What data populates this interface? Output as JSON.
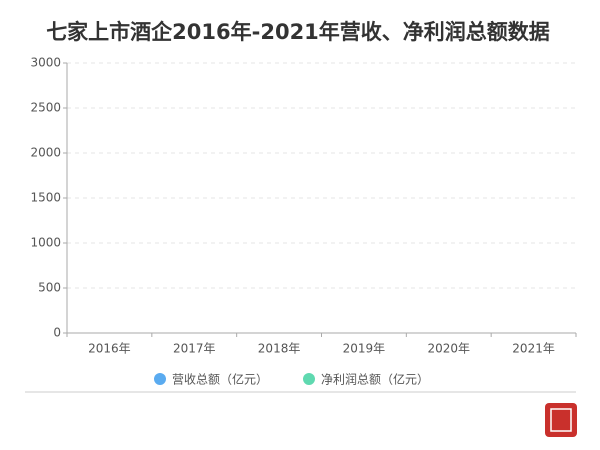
{
  "chart_data": {
    "type": "bar",
    "title": "七家上市酒企2016年-2021年营收、净利润总额数据",
    "categories": [
      "2016年",
      "2017年",
      "2018年",
      "2019年",
      "2020年",
      "2021年"
    ],
    "series": [
      {
        "name": "营收总额（亿元）",
        "color": "#5aabf0",
        "values": [
          null,
          null,
          null,
          null,
          null,
          null
        ]
      },
      {
        "name": "净利润总额（亿元）",
        "color": "#5fd9b0",
        "values": [
          null,
          null,
          null,
          null,
          null,
          null
        ]
      }
    ],
    "ylim": [
      0,
      3000
    ],
    "yticks": [
      0,
      500,
      1000,
      1500,
      2000,
      2500,
      3000
    ],
    "grid": true
  }
}
